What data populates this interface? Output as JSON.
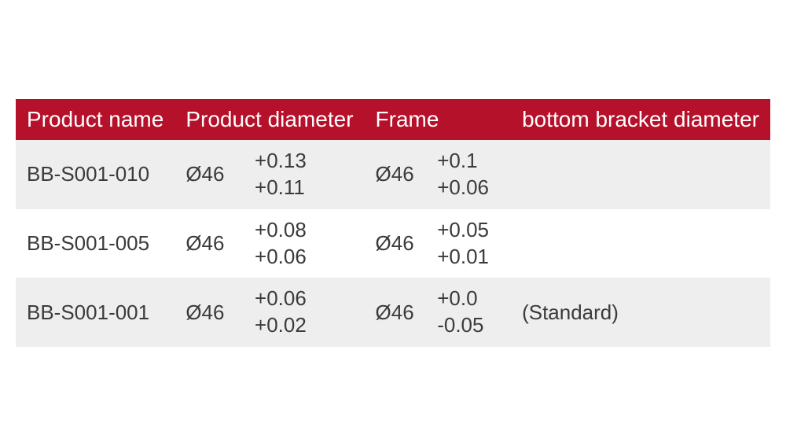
{
  "table": {
    "header_bg": "#b6112b",
    "header_color": "#ffffff",
    "row_alt_bg": "#eeeeee",
    "row_bg": "#ffffff",
    "text_color": "#3b3b3b",
    "font_size_header": 28,
    "font_size_body": 26,
    "columns": {
      "name": "Product name",
      "product_diameter": "Product diameter",
      "frame": "Frame",
      "bottom_bracket": "bottom bracket diameter"
    },
    "rows": [
      {
        "name": "BB-S001-010",
        "product_diameter": "Ø46",
        "product_tol_upper": "+0.13",
        "product_tol_lower": "+0.11",
        "frame_diameter": "Ø46",
        "bb_tol_upper": "+0.1",
        "bb_tol_lower": "+0.06",
        "note": ""
      },
      {
        "name": "BB-S001-005",
        "product_diameter": "Ø46",
        "product_tol_upper": "+0.08",
        "product_tol_lower": "+0.06",
        "frame_diameter": "Ø46",
        "bb_tol_upper": "+0.05",
        "bb_tol_lower": "+0.01",
        "note": ""
      },
      {
        "name": "BB-S001-001",
        "product_diameter": "Ø46",
        "product_tol_upper": "+0.06",
        "product_tol_lower": "+0.02",
        "frame_diameter": "Ø46",
        "bb_tol_upper": "+0.0",
        "bb_tol_lower": "-0.05",
        "note": "(Standard)"
      }
    ]
  }
}
